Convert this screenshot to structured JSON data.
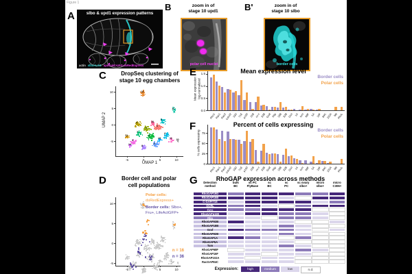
{
  "figure_label": "Figure 1",
  "colors": {
    "border_cells_bar": "#9a8cc5",
    "polar_cells_bar": "#f2a24b",
    "polar_text": "#f59c3c",
    "border_text": "#5b4ba0",
    "frame_orange": "#e89c28",
    "magenta": "#ee3cee",
    "cyan": "#30dcdc",
    "heat_high": "#46287a",
    "heat_medium": "#8d7bb9",
    "heat_low": "#dcd7ec",
    "heat_nd": "#ffffff",
    "label_light": "#c9c2e2"
  },
  "panel_a": {
    "letter": "A",
    "title": "slbo & upd1 expression patterns",
    "caption": {
      "actin": "actin",
      "slbo": "slbo>LAG",
      "upd": "updGal4>UAS-dsRedExpress"
    }
  },
  "panel_b": {
    "letter": "B",
    "title_line1": "zoom in of",
    "title_line2": "stage 10 upd1",
    "caption": "polar cell nuclei"
  },
  "panel_b_prime": {
    "letter": "B'",
    "title_line1": "zoom in of",
    "title_line2": "stage 10 slbo",
    "caption": "border cells"
  },
  "panel_c": {
    "letter": "C",
    "title_line1": "DropSeq clustering of",
    "title_line2": "stage 10 egg chambers",
    "xlabel": "UMAP 1",
    "ylabel": "UMAP 2"
  },
  "panel_d": {
    "letter": "D",
    "title_line1": "Border cell and polar",
    "title_line2": "cell populations",
    "polar_heading": "Polar cells:",
    "polar_marker": "dsRedExpress+",
    "border_heading": "Border cells:",
    "border_marker_line1": " Slbo+,",
    "border_marker_line2": "Fru+, LifeActGFP+",
    "n_polar": "n = 16",
    "n_border": "n = 36"
  },
  "panel_e": {
    "letter": "E",
    "title": "Mean expression level",
    "ylabel_line1": "Mean expression",
    "ylabel_line2": "log-normalized"
  },
  "panel_f": {
    "letter": "F",
    "title": "Percent of cells expressing",
    "ylabel": "% cells expressing"
  },
  "panel_g": {
    "letter": "G",
    "title": "RhoGAP expression across methods",
    "legend_label": "Expression:"
  },
  "chart_data": [
    {
      "id": "E",
      "type": "bar",
      "title": "Mean expression level",
      "ylabel": "Mean expression log-normalized",
      "ylim": [
        0,
        1.55
      ],
      "yticks": [
        {
          "label": "0.0",
          "v": 0
        },
        {
          "label": "0.5",
          "v": 0.5
        },
        {
          "label": "1.0",
          "v": 1.0
        },
        {
          "label": "1.5",
          "v": 1.5
        }
      ],
      "legend_position": "top-right",
      "categories": [
        "Rho1",
        "Rac1",
        "Rac2",
        "Cdc42",
        "19D",
        "71E",
        "p190",
        "15B",
        "cv-c",
        "93B",
        "Graf",
        "Rlip",
        "18B",
        "92B",
        "Ocrl",
        "1A",
        "tum",
        "68F",
        "5A",
        "16F",
        "84C",
        "102A",
        "Mtl",
        "RhoL"
      ],
      "series": [
        {
          "name": "Border cells",
          "color": "#9a8cc5",
          "values": [
            1.35,
            1.17,
            0.95,
            0.88,
            0.73,
            0.63,
            0.42,
            0.34,
            0.33,
            0.21,
            0.16,
            0.13,
            0.11,
            0.1,
            0.04,
            0.05,
            0.03,
            0.01,
            0.06,
            0.01,
            0,
            0,
            0,
            0
          ]
        },
        {
          "name": "Polar cells",
          "color": "#f2a24b",
          "values": [
            1.47,
            1.01,
            0.73,
            0.85,
            0.78,
            1.23,
            0.74,
            0.05,
            0.55,
            0.22,
            0.03,
            0.13,
            0.34,
            0.13,
            0.03,
            0,
            0.18,
            0.05,
            0.03,
            0.06,
            0,
            0,
            0.13,
            0.14
          ]
        }
      ]
    },
    {
      "id": "F",
      "type": "bar",
      "title": "Percent of cells expressing",
      "ylabel": "% cells expressing",
      "ylim": [
        0,
        92
      ],
      "yticks": [
        {
          "label": "0",
          "v": 0
        },
        {
          "label": "25",
          "v": 25
        },
        {
          "label": "50",
          "v": 50
        },
        {
          "label": "75",
          "v": 75
        }
      ],
      "legend_position": "top-right",
      "categories": [
        "Rho1",
        "Rac1",
        "Rac2",
        "Cdc42",
        "19D",
        "71E",
        "p190",
        "15B",
        "cv-c",
        "93B",
        "Graf",
        "Rlip",
        "18B",
        "92B",
        "Ocrl",
        "1A",
        "tum",
        "68F",
        "5A",
        "16F",
        "84C",
        "102A",
        "Mtl",
        "RhoL"
      ],
      "series": [
        {
          "name": "Border cells",
          "color": "#9a8cc5",
          "values": [
            88,
            83,
            81,
            79,
            61,
            58,
            56,
            54,
            33,
            32,
            26,
            25,
            24,
            22,
            19,
            13,
            9,
            8,
            5,
            2,
            6,
            1,
            0,
            0
          ]
        },
        {
          "name": "Polar cells",
          "color": "#f2a24b",
          "values": [
            88,
            61,
            55,
            61,
            58,
            49,
            81,
            61,
            5,
            49,
            24,
            25,
            5,
            37,
            20,
            11,
            1,
            0,
            18,
            8,
            6,
            5,
            0,
            12
          ]
        }
      ]
    },
    {
      "id": "C",
      "type": "scatter",
      "xlabel": "UMAP 1",
      "ylabel": "UMAP 2",
      "xticks": [
        -5,
        0,
        5,
        10
      ],
      "yticks": [
        10,
        5,
        0,
        -5
      ],
      "clusters": [
        {
          "id": 13,
          "x": -0.4,
          "y": 9.8,
          "sx": 0.6,
          "sy": 1.0,
          "n": 28,
          "color": "#E8862A"
        },
        {
          "id": 17,
          "x": 9.0,
          "y": 4.6,
          "sx": 0.5,
          "sy": 1.1,
          "n": 14,
          "color": "#00C19F"
        },
        {
          "id": 0,
          "x": 4.4,
          "y": -0.6,
          "sx": 1.2,
          "sy": 1.0,
          "n": 42,
          "color": "#F8766D"
        },
        {
          "id": 4,
          "x": -1.9,
          "y": 0.4,
          "sx": 1.1,
          "sy": 1.0,
          "n": 34,
          "color": "#B79F00"
        },
        {
          "id": 2,
          "x": 1.9,
          "y": -3.5,
          "sx": 1.2,
          "sy": 1.0,
          "n": 40,
          "color": "#00BA38"
        },
        {
          "id": 6,
          "x": 6.7,
          "y": -2.9,
          "sx": 0.9,
          "sy": 0.9,
          "n": 28,
          "color": "#00B9E3"
        },
        {
          "id": 3,
          "x": 3.5,
          "y": -6.0,
          "sx": 1.1,
          "sy": 0.8,
          "n": 32,
          "color": "#619CFF"
        },
        {
          "id": 8,
          "x": -0.2,
          "y": -6.7,
          "sx": 1.0,
          "sy": 0.7,
          "n": 26,
          "color": "#AE87FF"
        },
        {
          "id": 9,
          "x": -3.1,
          "y": -5.0,
          "sx": 0.9,
          "sy": 0.8,
          "n": 24,
          "color": "#F564E3"
        },
        {
          "id": 12,
          "x": -5.2,
          "y": -3.5,
          "sx": 0.8,
          "sy": 0.7,
          "n": 18,
          "color": "#D39200"
        },
        {
          "id": 5,
          "x": 5.6,
          "y": 1.2,
          "sx": 0.9,
          "sy": 0.8,
          "n": 24,
          "color": "#00BFC4"
        },
        {
          "id": 11,
          "x": 8.3,
          "y": -4.4,
          "sx": 0.7,
          "sy": 0.7,
          "n": 16,
          "color": "#FF61C3"
        },
        {
          "id": 1,
          "x": 1.0,
          "y": -1.2,
          "sx": 1.1,
          "sy": 1.0,
          "n": 34,
          "color": "#93AA00"
        },
        {
          "id": 7,
          "x": -1.7,
          "y": -2.5,
          "sx": 1.0,
          "sy": 0.9,
          "n": 26,
          "color": "#00BF74"
        },
        {
          "id": 10,
          "x": 2.7,
          "y": 0.6,
          "sx": 0.9,
          "sy": 0.7,
          "n": 20,
          "color": "#FF699C"
        },
        {
          "id": 14,
          "x": -4.2,
          "y": -6.2,
          "sx": 0.7,
          "sy": 0.6,
          "n": 14,
          "color": "#DB72FB"
        },
        {
          "id": 15,
          "x": 4.8,
          "y": -4.4,
          "sx": 0.8,
          "sy": 0.7,
          "n": 18,
          "color": "#00ADFA"
        },
        {
          "id": 20,
          "x": 10.3,
          "y": -4.8,
          "sx": 0.3,
          "sy": 0.3,
          "n": 4,
          "color": "#999999"
        }
      ]
    },
    {
      "id": "D",
      "type": "scatter",
      "monochrome": "#c8c8c8",
      "xticks": [
        -5,
        0,
        5,
        10
      ],
      "yticks": [
        10,
        5,
        0,
        -5
      ],
      "highlights": [
        {
          "name": "Polar cells",
          "color": "#f59c3c",
          "n_label": "n = 16",
          "groups": [
            {
              "x": 0.0,
              "y": 9.8,
              "sx": 0.5,
              "sy": 0.8,
              "n": 5
            },
            {
              "x": 1.5,
              "y": 5.5,
              "sx": 0.7,
              "sy": 0.7,
              "n": 4
            },
            {
              "x": 0.3,
              "y": 2.8,
              "sx": 0.8,
              "sy": 0.6,
              "n": 4
            },
            {
              "x": 9.0,
              "y": 4.6,
              "sx": 0.3,
              "sy": 0.5,
              "n": 3
            }
          ]
        },
        {
          "name": "Border cells",
          "color": "#5b4ba0",
          "n_label": "n = 36",
          "groups": [
            {
              "x": 0.2,
              "y": 1.5,
              "sx": 1.2,
              "sy": 1.2,
              "n": 10
            },
            {
              "x": -1.5,
              "y": -1.5,
              "sx": 1.2,
              "sy": 1.2,
              "n": 10
            },
            {
              "x": 1.5,
              "y": -3.5,
              "sx": 1.3,
              "sy": 1.2,
              "n": 8
            },
            {
              "x": -3.5,
              "y": -5.5,
              "sx": 1.0,
              "sy": 0.8,
              "n": 8
            }
          ]
        }
      ]
    },
    {
      "id": "G",
      "type": "heatmap",
      "title": "RhoGAP expression across methods",
      "columns": [
        [
          "Detection",
          "method"
        ],
        [
          "bulk",
          "BC"
        ],
        [
          "sc PC",
          "FlyBase"
        ],
        [
          "sc",
          "BC"
        ],
        [
          "sc",
          "PC"
        ],
        [
          "sc ovary",
          "slbo+"
        ],
        [
          "micro",
          "slbo+"
        ],
        [
          "micro",
          "C306+"
        ]
      ],
      "rows": [
        {
          "name": "RhoGAP19D",
          "label_style": "dark",
          "values": [
            "M",
            "H",
            "H",
            "H",
            "M",
            "M",
            "H"
          ]
        },
        {
          "name": "RhoGAP15B",
          "label_style": "dark",
          "values": [
            "H",
            "H",
            "H",
            "L",
            "N",
            "H",
            "H"
          ]
        },
        {
          "name": "C-GAP/71E",
          "label_style": "dark",
          "values": [
            "L",
            "H",
            "H",
            "H",
            "H",
            "L",
            "M"
          ]
        },
        {
          "name": "OCRL",
          "label_style": "dark",
          "values": [
            "M",
            "H",
            "L",
            "N",
            "M",
            "H",
            "H"
          ]
        },
        {
          "name": "Cv-c",
          "label_style": "dark",
          "values": [
            "M",
            "M",
            "H",
            "H",
            "H",
            "N",
            "N"
          ]
        },
        {
          "name": "RhoGAPp190",
          "label_style": "dark",
          "values": [
            "L",
            "H",
            "H",
            "M",
            "M",
            "L",
            "N"
          ]
        },
        {
          "name": "Rlip",
          "label_style": "medium",
          "values": [
            "L",
            "L",
            "N",
            "M",
            "M",
            "L",
            "N"
          ]
        },
        {
          "name": "RhoGAP93B",
          "label_style": "light",
          "values": [
            "H",
            "L",
            "L",
            "L",
            "N",
            "N",
            "L"
          ]
        },
        {
          "name": "RhoGAP18B",
          "label_style": "light",
          "values": [
            "L",
            "L",
            "L",
            "M",
            "L",
            "N",
            "N"
          ]
        },
        {
          "name": "Graf",
          "label_style": "light",
          "values": [
            "H",
            "M",
            "M",
            "M",
            "L",
            "N",
            "L"
          ]
        },
        {
          "name": "RhoGAP92B",
          "label_style": "light",
          "values": [
            "L",
            "L",
            "L",
            "M",
            "L",
            "N",
            "N"
          ]
        },
        {
          "name": "RhoGAP1A",
          "label_style": "light",
          "values": [
            "H",
            "M",
            "L",
            "N",
            "M",
            "N",
            "N"
          ]
        },
        {
          "name": "RhoGAP5A",
          "label_style": "light",
          "values": [
            "L",
            "L",
            "L",
            "L",
            "N",
            "N",
            "N"
          ]
        },
        {
          "name": "Tum",
          "label_style": "light",
          "values": [
            "L",
            "L",
            "L",
            "M",
            "L",
            "N",
            "N"
          ]
        },
        {
          "name": "RhoGAP68F",
          "label_style": "white",
          "values": [
            "N",
            "L",
            "L",
            "L",
            "M",
            "L",
            "N"
          ]
        },
        {
          "name": "RhoGAP16F",
          "label_style": "white",
          "values": [
            "L",
            "L",
            "N",
            "L",
            "L",
            "N",
            "N"
          ]
        },
        {
          "name": "RhoGAP102A",
          "label_style": "white",
          "values": [
            "L",
            "N",
            "L",
            "L",
            "N",
            "N",
            "N"
          ]
        },
        {
          "name": "RacGAP84C",
          "label_style": "white",
          "values": [
            "L",
            "L",
            "L",
            "L",
            "N",
            "N",
            "N"
          ]
        }
      ],
      "levels_legend": [
        {
          "label": "high",
          "level": "H"
        },
        {
          "label": "medium",
          "level": "M"
        },
        {
          "label": "low",
          "level": "L"
        },
        {
          "label": "n.d.",
          "level": "N"
        }
      ]
    }
  ]
}
